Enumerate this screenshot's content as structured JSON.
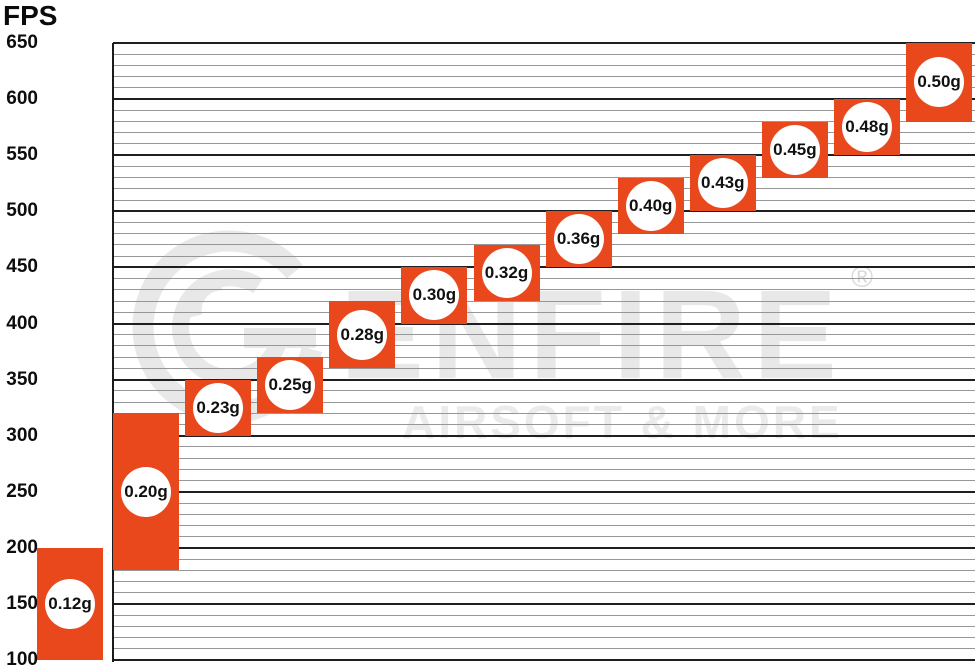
{
  "title": "FPS",
  "watermark": {
    "brand": "GENFIRE",
    "tagline": "AIRSOFT & MORE",
    "registered_mark": "®",
    "color": "#e8e8e8"
  },
  "colors": {
    "background": "#ffffff",
    "bar": "#e8481c",
    "badge_bg": "#ffffff",
    "badge_text": "#111111",
    "grid_minor": "#979797",
    "grid_major": "#1f1f1f",
    "axis_text": "#0d0d0d"
  },
  "chart_data": {
    "type": "bar",
    "subtype": "floating-range-columns",
    "title": "FPS",
    "xlabel": "",
    "ylabel": "FPS",
    "ylim": [
      100,
      650
    ],
    "y_major_step": 50,
    "y_minor_step": 10,
    "grid": "horizontal",
    "legend": "none",
    "y_tick_labels": [
      "650",
      "600",
      "550",
      "500",
      "450",
      "400",
      "350",
      "300",
      "250",
      "200",
      "150",
      "100"
    ],
    "categories": [
      "0.12g",
      "0.20g",
      "0.23g",
      "0.25g",
      "0.28g",
      "0.30g",
      "0.32g",
      "0.36g",
      "0.40g",
      "0.43g",
      "0.45g",
      "0.48g",
      "0.50g"
    ],
    "bars": [
      {
        "label": "0.12g",
        "fps_min": 100,
        "fps_max": 200
      },
      {
        "label": "0.20g",
        "fps_min": 180,
        "fps_max": 320
      },
      {
        "label": "0.23g",
        "fps_min": 300,
        "fps_max": 350
      },
      {
        "label": "0.25g",
        "fps_min": 320,
        "fps_max": 370
      },
      {
        "label": "0.28g",
        "fps_min": 360,
        "fps_max": 420
      },
      {
        "label": "0.30g",
        "fps_min": 400,
        "fps_max": 450
      },
      {
        "label": "0.32g",
        "fps_min": 420,
        "fps_max": 470
      },
      {
        "label": "0.36g",
        "fps_min": 450,
        "fps_max": 500
      },
      {
        "label": "0.40g",
        "fps_min": 480,
        "fps_max": 530
      },
      {
        "label": "0.43g",
        "fps_min": 500,
        "fps_max": 550
      },
      {
        "label": "0.45g",
        "fps_min": 530,
        "fps_max": 580
      },
      {
        "label": "0.48g",
        "fps_min": 550,
        "fps_max": 600
      },
      {
        "label": "0.50g",
        "fps_min": 580,
        "fps_max": 650
      }
    ]
  }
}
